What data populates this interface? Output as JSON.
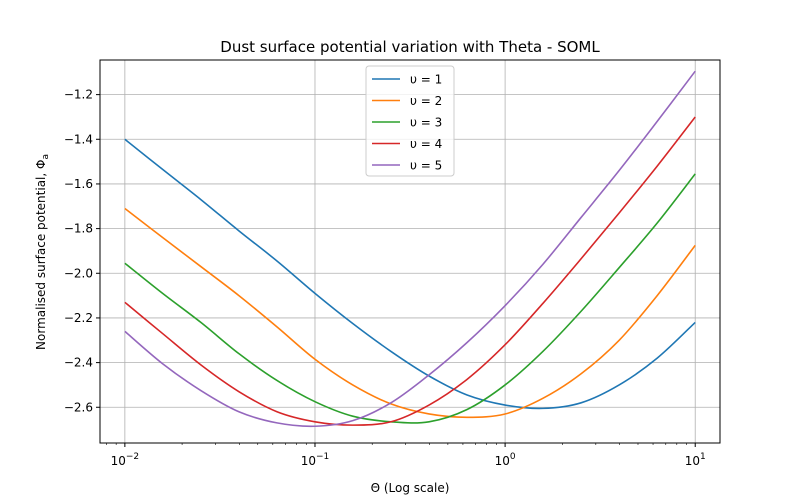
{
  "chart_data": {
    "type": "line",
    "title": "Dust surface potential variation with Theta - SOML",
    "xlabel": "Θ (Log scale)",
    "ylabel": "Normalised surface potential, Φ",
    "ylabel_sub": "a",
    "x_scale": "log",
    "xlim": [
      0.0074,
      13.5
    ],
    "ylim": [
      -2.76,
      -1.045
    ],
    "grid": true,
    "legend_position": "top-center",
    "x_ticks": [
      {
        "value": 0.01,
        "base": "10",
        "exp": "−2"
      },
      {
        "value": 0.1,
        "base": "10",
        "exp": "−1"
      },
      {
        "value": 1,
        "base": "10",
        "exp": "0"
      },
      {
        "value": 10,
        "base": "10",
        "exp": "1"
      }
    ],
    "y_ticks": [
      {
        "value": -1.2,
        "label": "−1.2"
      },
      {
        "value": -1.4,
        "label": "−1.4"
      },
      {
        "value": -1.6,
        "label": "−1.6"
      },
      {
        "value": -1.8,
        "label": "−1.8"
      },
      {
        "value": -2.0,
        "label": "−2.0"
      },
      {
        "value": -2.2,
        "label": "−2.2"
      },
      {
        "value": -2.4,
        "label": "−2.4"
      },
      {
        "value": -2.6,
        "label": "−2.6"
      }
    ],
    "x": [
      0.01,
      0.0158,
      0.0251,
      0.0398,
      0.0631,
      0.1,
      0.158,
      0.251,
      0.398,
      0.631,
      1.0,
      1.58,
      2.51,
      3.98,
      6.31,
      10.0
    ],
    "series": [
      {
        "name": "υ = 1",
        "color": "#1f77b4",
        "values": [
          -1.4,
          -1.535,
          -1.67,
          -1.81,
          -1.945,
          -2.09,
          -2.225,
          -2.35,
          -2.46,
          -2.545,
          -2.59,
          -2.605,
          -2.58,
          -2.5,
          -2.38,
          -2.22
        ]
      },
      {
        "name": "υ = 2",
        "color": "#ff7f0e",
        "values": [
          -1.71,
          -1.84,
          -1.97,
          -2.1,
          -2.24,
          -2.385,
          -2.5,
          -2.585,
          -2.63,
          -2.645,
          -2.63,
          -2.56,
          -2.45,
          -2.3,
          -2.1,
          -1.875
        ]
      },
      {
        "name": "υ = 3",
        "color": "#2ca02c",
        "values": [
          -1.955,
          -2.09,
          -2.22,
          -2.36,
          -2.48,
          -2.575,
          -2.64,
          -2.665,
          -2.665,
          -2.61,
          -2.5,
          -2.35,
          -2.17,
          -1.975,
          -1.775,
          -1.555
        ]
      },
      {
        "name": "υ = 4",
        "color": "#d62728",
        "values": [
          -2.13,
          -2.27,
          -2.41,
          -2.53,
          -2.62,
          -2.665,
          -2.68,
          -2.665,
          -2.59,
          -2.475,
          -2.32,
          -2.135,
          -1.935,
          -1.73,
          -1.52,
          -1.3
        ]
      },
      {
        "name": "υ = 5",
        "color": "#9467bd",
        "values": [
          -2.26,
          -2.405,
          -2.525,
          -2.62,
          -2.67,
          -2.685,
          -2.66,
          -2.58,
          -2.455,
          -2.31,
          -2.145,
          -1.96,
          -1.75,
          -1.54,
          -1.32,
          -1.095
        ]
      }
    ]
  }
}
